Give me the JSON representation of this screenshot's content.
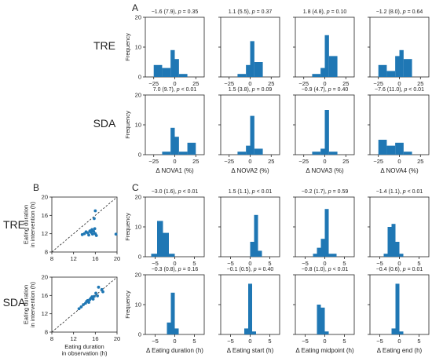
{
  "panel_letters": {
    "A": "A",
    "B": "B",
    "C": "C"
  },
  "row_labels": {
    "tre": "TRE",
    "sda": "SDA"
  },
  "bar_color": "#1f77b4",
  "chart_data": [
    {
      "id": "A",
      "type": "bar",
      "ylabel": "Frequency",
      "ylim": [
        0,
        20
      ],
      "yticks": [
        0,
        10,
        20
      ],
      "xlim": [
        -35,
        35
      ],
      "xticks": [
        -25,
        0,
        25
      ],
      "columns": [
        "Δ NOVA1 (%)",
        "Δ NOVA2 (%)",
        "Δ NOVA3 (%)",
        "Δ NOVA4 (%)"
      ],
      "rows": [
        {
          "group": "TRE",
          "panels": [
            {
              "stat": "−1.6 (7.9), p = 0.35",
              "bins": [
                [
                  -25,
                  -15,
                  4
                ],
                [
                  -15,
                  -5,
                  3
                ],
                [
                  -5,
                  0,
                  9
                ],
                [
                  0,
                  5,
                  6
                ],
                [
                  5,
                  15,
                  1
                ]
              ]
            },
            {
              "stat": "1.1 (5.5), p = 0.37",
              "bins": [
                [
                  -15,
                  -5,
                  1
                ],
                [
                  -5,
                  0,
                  4
                ],
                [
                  0,
                  5,
                  12
                ],
                [
                  5,
                  15,
                  5
                ]
              ]
            },
            {
              "stat": "1.8 (4.8), p = 0.10",
              "bins": [
                [
                  -15,
                  -5,
                  1
                ],
                [
                  -5,
                  0,
                  3
                ],
                [
                  0,
                  5,
                  14
                ],
                [
                  5,
                  15,
                  7
                ]
              ]
            },
            {
              "stat": "−1.2 (8.0), p = 0.64",
              "bins": [
                [
                  -25,
                  -15,
                  4
                ],
                [
                  -15,
                  -5,
                  2
                ],
                [
                  -5,
                  0,
                  7
                ],
                [
                  0,
                  5,
                  9
                ],
                [
                  5,
                  15,
                  6
                ]
              ]
            }
          ]
        },
        {
          "group": "SDA",
          "panels": [
            {
              "stat": "7.0 (9.7), p < 0.01",
              "bins": [
                [
                  -15,
                  -5,
                  1
                ],
                [
                  -5,
                  0,
                  9
                ],
                [
                  0,
                  5,
                  6
                ],
                [
                  5,
                  15,
                  1
                ],
                [
                  15,
                  25,
                  4
                ]
              ]
            },
            {
              "stat": "1.5 (3.8), p = 0.09",
              "bins": [
                [
                  -15,
                  -5,
                  1
                ],
                [
                  -5,
                  0,
                  3
                ],
                [
                  0,
                  5,
                  13
                ],
                [
                  5,
                  15,
                  2
                ]
              ]
            },
            {
              "stat": "−0.9 (4.7), p = 0.40",
              "bins": [
                [
                  -15,
                  -5,
                  1
                ],
                [
                  -5,
                  0,
                  2
                ],
                [
                  0,
                  5,
                  15
                ],
                [
                  5,
                  15,
                  1
                ]
              ]
            },
            {
              "stat": "−7.6 (11.0), p < 0.01",
              "bins": [
                [
                  -25,
                  -15,
                  5
                ],
                [
                  -15,
                  -5,
                  3
                ],
                [
                  -5,
                  0,
                  4
                ],
                [
                  0,
                  5,
                  4
                ],
                [
                  5,
                  15,
                  1
                ]
              ]
            }
          ]
        }
      ]
    },
    {
      "id": "B",
      "type": "scatter",
      "xlabel": "Eating duration in observation (h)",
      "ylabel": "Eating duration in intervention (h)",
      "xlim": [
        8,
        20
      ],
      "ylim": [
        8,
        20
      ],
      "xticks": [
        8,
        12,
        16,
        20
      ],
      "yticks": [
        8,
        12,
        16,
        20
      ],
      "identity_line": true,
      "rows": [
        {
          "group": "TRE",
          "points": [
            [
              13.6,
              11.8
            ],
            [
              14.0,
              12.0
            ],
            [
              14.3,
              12.4
            ],
            [
              14.6,
              12.2
            ],
            [
              14.8,
              11.7
            ],
            [
              15.0,
              12.6
            ],
            [
              15.2,
              12.3
            ],
            [
              15.4,
              12.9
            ],
            [
              15.5,
              11.9
            ],
            [
              15.7,
              12.5
            ],
            [
              15.9,
              13.1
            ],
            [
              16.0,
              12.0
            ],
            [
              15.3,
              12.7
            ],
            [
              15.8,
              15.3
            ],
            [
              16.0,
              17.0
            ],
            [
              16.2,
              11.6
            ],
            [
              19.8,
              11.9
            ]
          ]
        },
        {
          "group": "SDA",
          "points": [
            [
              13.0,
              13.1
            ],
            [
              13.4,
              13.5
            ],
            [
              13.8,
              14.0
            ],
            [
              14.2,
              14.3
            ],
            [
              14.4,
              14.7
            ],
            [
              14.6,
              14.9
            ],
            [
              14.8,
              14.5
            ],
            [
              15.0,
              15.1
            ],
            [
              15.2,
              15.4
            ],
            [
              15.4,
              15.7
            ],
            [
              15.6,
              15.2
            ],
            [
              15.8,
              15.8
            ],
            [
              16.1,
              16.5
            ],
            [
              16.4,
              15.9
            ],
            [
              16.6,
              17.8
            ],
            [
              17.4,
              16.8
            ],
            [
              17.2,
              17.3
            ]
          ]
        }
      ]
    },
    {
      "id": "C",
      "type": "bar",
      "ylabel": "Frequency",
      "ylim": [
        0,
        20
      ],
      "yticks": [
        0,
        10,
        20
      ],
      "xlim": [
        -7.5,
        7.5
      ],
      "xticks": [
        -5,
        0,
        5
      ],
      "columns": [
        "Δ Eating duration (h)",
        "Δ Eating start (h)",
        "Δ Eating midpoint (h)",
        "Δ Eating end (h)"
      ],
      "rows": [
        {
          "group": "TRE",
          "panels": [
            {
              "stat": "−3.0 (1.6), p < 0.01",
              "bins": [
                [
                  -6,
                  -4.5,
                  1
                ],
                [
                  -4.5,
                  -3,
                  12
                ],
                [
                  -3,
                  -1.5,
                  8
                ],
                [
                  -1.5,
                  0,
                  1
                ]
              ]
            },
            {
              "stat": "1.5 (1.1), p < 0.01",
              "bins": [
                [
                  0,
                  1,
                  5
                ],
                [
                  1,
                  2,
                  14
                ],
                [
                  2,
                  3,
                  2
                ]
              ]
            },
            {
              "stat": "−0.2 (1.7), p = 0.59",
              "bins": [
                [
                  -3,
                  -2,
                  1
                ],
                [
                  -2,
                  -1,
                  3
                ],
                [
                  -1,
                  0,
                  6
                ],
                [
                  0,
                  1,
                  16
                ],
                [
                  1,
                  2,
                  1
                ],
                [
                  2,
                  3,
                  1
                ]
              ]
            },
            {
              "stat": "−1.4 (1.1), p < 0.01",
              "bins": [
                [
                  -4,
                  -3,
                  1
                ],
                [
                  -3,
                  -2,
                  10
                ],
                [
                  -2,
                  -1,
                  11
                ],
                [
                  -1,
                  0,
                  5
                ],
                [
                  0,
                  1,
                  1
                ]
              ]
            }
          ]
        },
        {
          "group": "SDA",
          "panels": [
            {
              "stat": "−0.3 (0.8), p = 0.16",
              "bins": [
                [
                  -2,
                  -1,
                  4
                ],
                [
                  -1,
                  0,
                  14
                ],
                [
                  0,
                  1,
                  2
                ]
              ]
            },
            {
              "stat": "−0.1 (0.5), p = 0.40",
              "bins": [
                [
                  -1.5,
                  -0.5,
                  2
                ],
                [
                  -0.5,
                  0.5,
                  17
                ],
                [
                  0.5,
                  1.5,
                  1
                ]
              ]
            },
            {
              "stat": "−0.8 (1.0), p < 0.01",
              "bins": [
                [
                  -2,
                  -1,
                  10
                ],
                [
                  -1,
                  0,
                  9
                ],
                [
                  0,
                  1,
                  1
                ]
              ]
            },
            {
              "stat": "−0.4 (0.6), p = 0.01",
              "bins": [
                [
                  -2,
                  -1,
                  2
                ],
                [
                  -1,
                  0,
                  17
                ],
                [
                  0,
                  1,
                  1
                ]
              ]
            }
          ]
        }
      ]
    }
  ]
}
